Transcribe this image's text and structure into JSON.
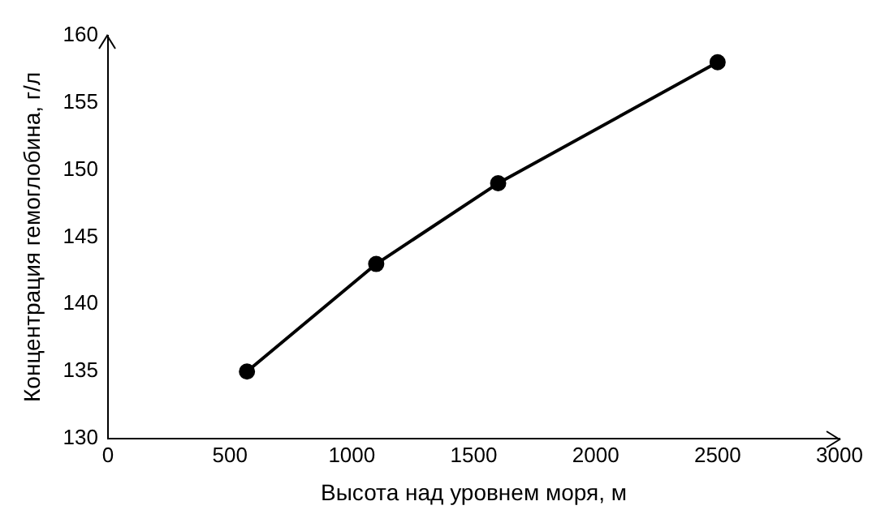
{
  "chart_data": {
    "type": "line",
    "xlabel": "Высота над уровнем моря, м",
    "ylabel": "Концентрация гемоглобина, г/л",
    "x": [
      570,
      1100,
      1600,
      2500
    ],
    "series": [
      {
        "color": "#000000",
        "values": [
          135,
          143,
          149,
          158
        ]
      }
    ],
    "xlim": [
      0,
      3000
    ],
    "xticks": [
      0,
      500,
      1000,
      1500,
      2000,
      2500,
      3000
    ],
    "ylim": [
      130,
      160
    ],
    "yticks": [
      130,
      135,
      140,
      145,
      150,
      155,
      160
    ],
    "grid": false,
    "legend": false,
    "marker": "circle",
    "line_style": "solid"
  }
}
